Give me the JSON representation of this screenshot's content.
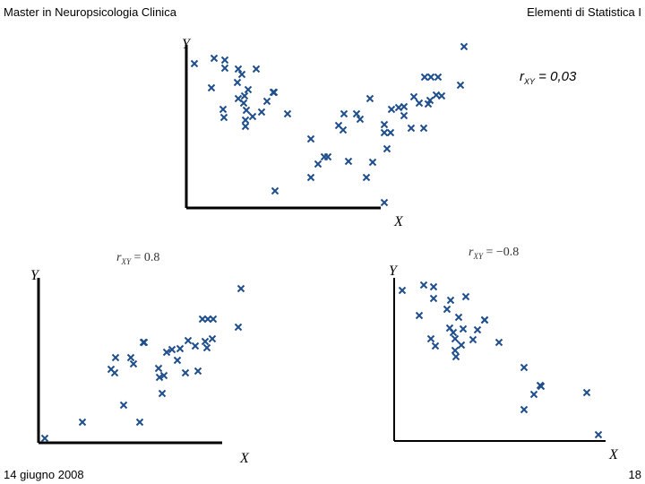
{
  "header": {
    "left": "Master in Neuropsicologia Clinica",
    "right": "Elementi di Statistica I"
  },
  "footer": {
    "left": "14 giugno 2008",
    "right": "18"
  },
  "chart_data": [
    {
      "type": "scatter",
      "xlabel": "X",
      "ylabel": "Y",
      "annotation": {
        "symbol": "r",
        "sub": "XY",
        "text": " = 0,03"
      },
      "color": "#1f4e8c",
      "xlim": [
        0,
        320
      ],
      "ylim": [
        0,
        190
      ],
      "x": [
        9,
        31,
        43,
        43,
        28,
        58,
        78,
        62,
        57,
        69,
        58,
        65,
        64,
        41,
        42,
        67,
        74,
        84,
        90,
        98,
        97,
        66,
        66,
        113,
        99,
        139,
        139,
        147,
        154,
        158,
        176,
        170,
        175,
        190,
        194,
        181,
        201,
        208,
        205,
        221,
        229,
        237,
        228,
        221,
        224,
        243,
        243,
        251,
        254,
        260,
        266,
        273,
        281,
        265,
        279,
        272,
        270,
        285,
        306,
        310,
        221
      ],
      "values": [
        161,
        167,
        165,
        156,
        134,
        155,
        155,
        149,
        140,
        132,
        122,
        125,
        117,
        110,
        101,
        109,
        102,
        107,
        119,
        129,
        129,
        98,
        91,
        105,
        19,
        77,
        34,
        49,
        57,
        57,
        105,
        92,
        87,
        105,
        99,
        52,
        34,
        51,
        122,
        93,
        110,
        112,
        84,
        84,
        66,
        113,
        103,
        89,
        124,
        117,
        146,
        146,
        146,
        89,
        126,
        120,
        116,
        125,
        137,
        180,
        6
      ]
    },
    {
      "type": "scatter",
      "xlabel": "X",
      "ylabel": "Y",
      "annotation": {
        "symbol": "r",
        "sub": "XY",
        "text": " = 0.8"
      },
      "color": "#1f4e8c",
      "xlim": [
        0,
        240
      ],
      "ylim": [
        0,
        190
      ],
      "x": [
        7,
        49,
        113,
        95,
        138,
        81,
        85,
        86,
        103,
        106,
        117,
        134,
        135,
        140,
        143,
        149,
        155,
        158,
        164,
        167,
        175,
        178,
        186,
        188,
        194,
        183,
        189,
        195,
        223,
        226,
        118
      ],
      "values": [
        5,
        23,
        23,
        42,
        55,
        82,
        78,
        95,
        95,
        88,
        112,
        83,
        73,
        75,
        101,
        104,
        92,
        105,
        78,
        114,
        108,
        80,
        113,
        106,
        116,
        138,
        138,
        138,
        129,
        172,
        112
      ]
    },
    {
      "type": "scatter",
      "xlabel": "X",
      "ylabel": "Y",
      "annotation": {
        "symbol": "r",
        "sub": "XY",
        "text": " = −0.8"
      },
      "color": "#1f4e8c",
      "xlim": [
        0,
        240
      ],
      "ylim": [
        0,
        190
      ],
      "x": [
        9,
        33,
        44,
        44,
        28,
        63,
        80,
        59,
        72,
        62,
        66,
        41,
        46,
        68,
        75,
        88,
        93,
        101,
        101,
        117,
        68,
        69,
        145,
        163,
        156,
        145,
        215,
        228,
        164,
        77
      ],
      "values": [
        168,
        174,
        172,
        159,
        140,
        157,
        161,
        147,
        138,
        126,
        121,
        114,
        106,
        114,
        107,
        113,
        124,
        135,
        135,
        110,
        101,
        94,
        82,
        62,
        52,
        35,
        54,
        7,
        61,
        125
      ]
    }
  ]
}
